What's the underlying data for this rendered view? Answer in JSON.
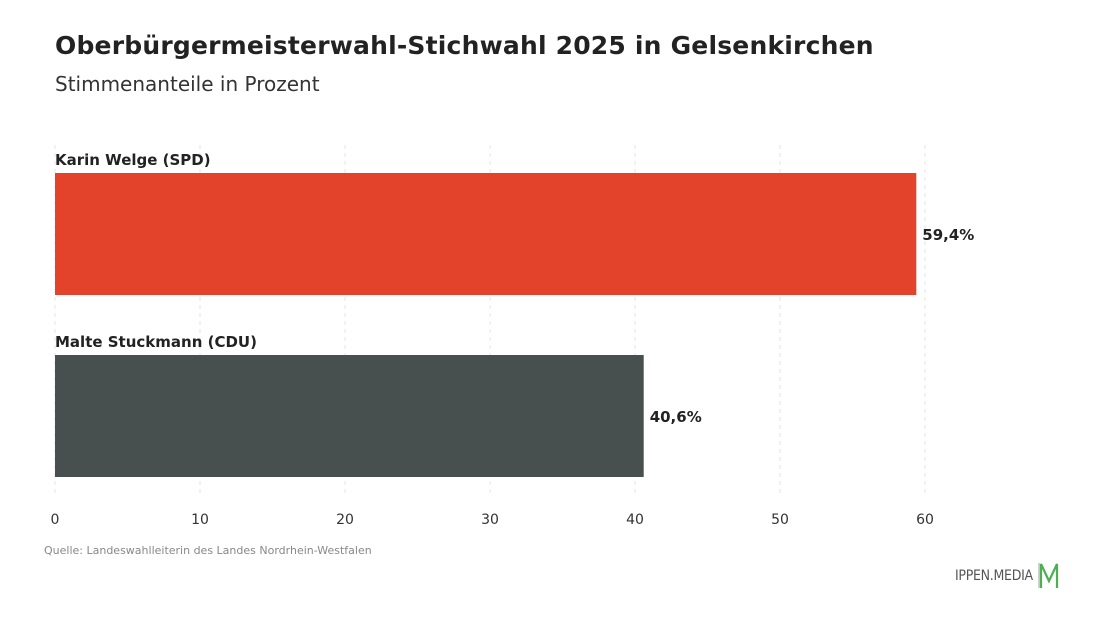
{
  "header": {
    "title": "Oberbürgermeisterwahl-Stichwahl 2025 in Gelsenkirchen",
    "subtitle": "Stimmenanteile in Prozent"
  },
  "footer": {
    "source": "Quelle: Landeswahlleiterin des Landes Nordrhein-Westfalen",
    "logo_text": "IPPEN.MEDIA",
    "logo_color": "#4caf50"
  },
  "chart_data": {
    "type": "bar",
    "orientation": "horizontal",
    "title": "Oberbürgermeisterwahl-Stichwahl 2025 in Gelsenkirchen",
    "subtitle": "Stimmenanteile in Prozent",
    "categories": [
      "Karin Welge (SPD)",
      "Malte Stuckmann (CDU)"
    ],
    "values": [
      59.4,
      40.6
    ],
    "value_labels": [
      "59,4%",
      "40,6%"
    ],
    "colors": [
      "#e2432a",
      "#47504f"
    ],
    "xlim": [
      0,
      60
    ],
    "xticks": [
      0,
      10,
      20,
      30,
      40,
      50,
      60
    ],
    "grid": true,
    "legend": "none"
  }
}
